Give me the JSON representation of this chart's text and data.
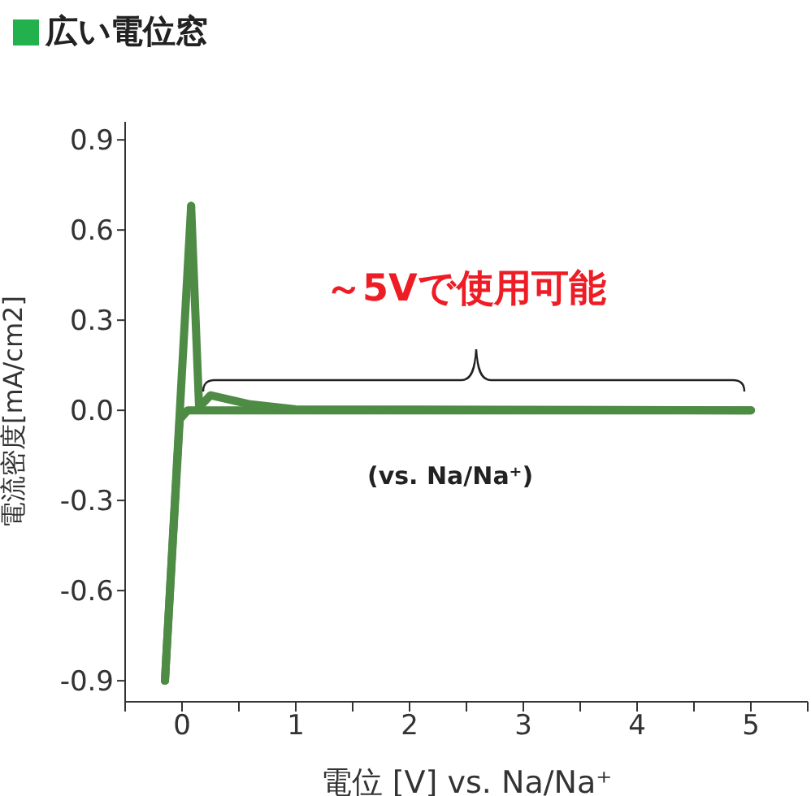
{
  "chart_data": {
    "type": "line",
    "title": "広い電位窓",
    "xlabel": "電位 [V] vs. Na/Na⁺",
    "ylabel": "電流密度[mA/cm2]",
    "annotations": [
      "～5Vで使用可能",
      "(vs. Na/Na⁺)"
    ],
    "series": [
      {
        "color": "#4e8b45",
        "x": [
          -0.15,
          -0.02,
          0.05,
          1,
          5
        ],
        "values": [
          -0.9,
          -0.03,
          0.0,
          0.0,
          0.0
        ]
      },
      {
        "color": "#4e8b45",
        "x": [
          0.08,
          0.15,
          0.25,
          0.6,
          1,
          5
        ],
        "values": [
          0.68,
          0.01,
          0.05,
          0.02,
          0.003,
          0.0
        ]
      },
      {
        "color": "#4e8b45",
        "x": [
          -0.15,
          0.08
        ],
        "values": [
          -0.9,
          0.68
        ]
      }
    ],
    "xlim": [
      -0.5,
      5.5
    ],
    "xticks": [
      {
        "value": -0.5,
        "label": null
      },
      0,
      {
        "value": 0.5,
        "label": null
      },
      1,
      {
        "value": 1.5,
        "label": null
      },
      2,
      {
        "value": 2.5,
        "label": null
      },
      3,
      {
        "value": 3.5,
        "label": null
      },
      4,
      {
        "value": 4.5,
        "label": null
      },
      5,
      {
        "value": 5.5,
        "label": null
      }
    ],
    "ylim": [
      -0.97,
      0.96
    ],
    "yticks": [
      -0.9,
      -0.6,
      -0.3,
      {
        "value": 0,
        "label": "0.0"
      },
      0.3,
      0.6,
      0.9
    ],
    "grid": false,
    "legend": false,
    "marker": "none",
    "line_style": "solid"
  }
}
